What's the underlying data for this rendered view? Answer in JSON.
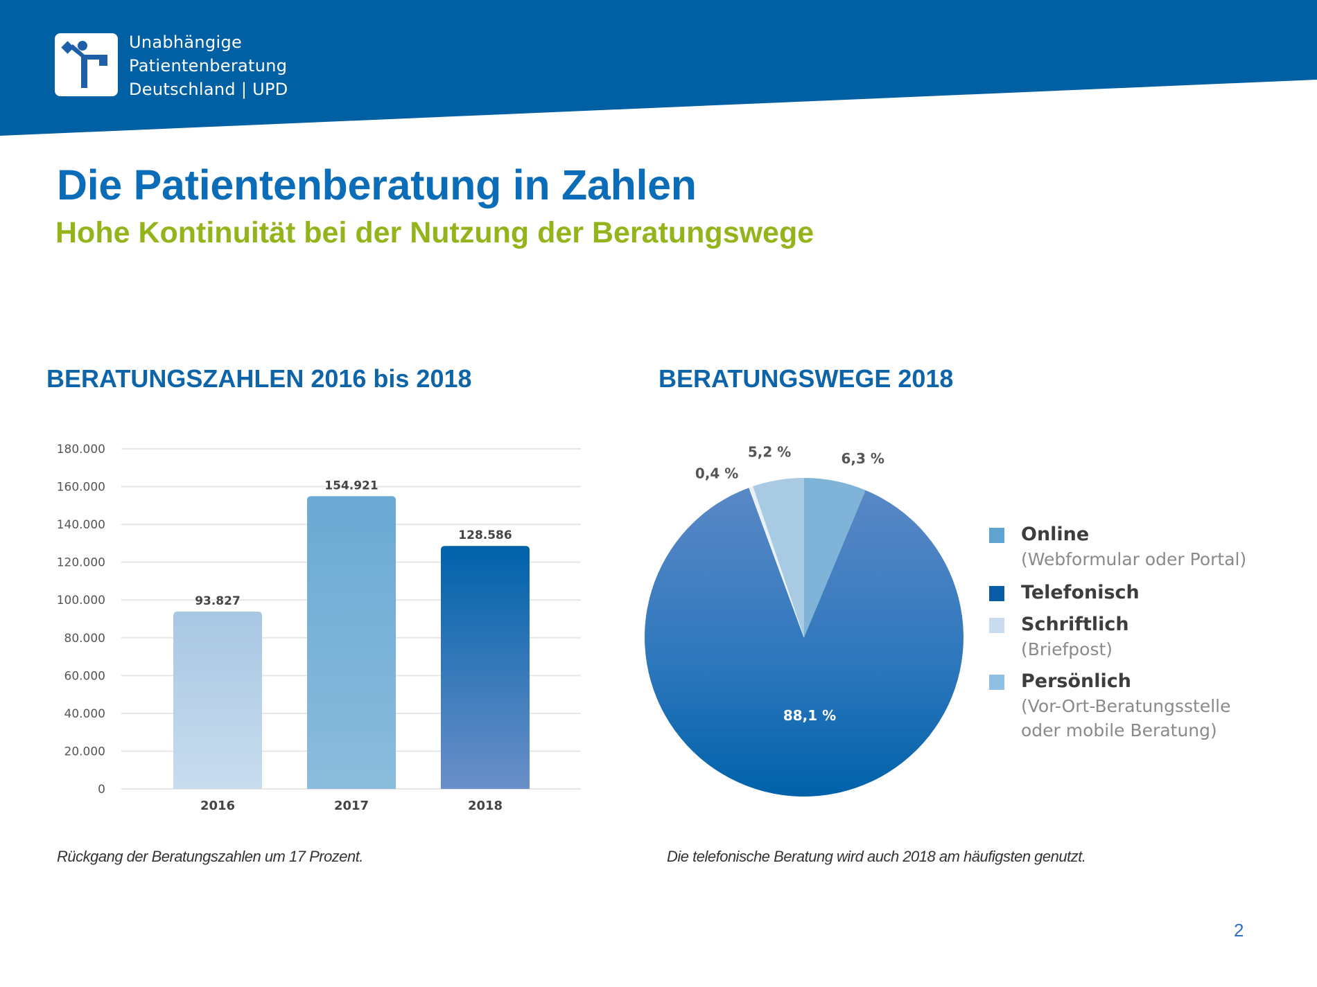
{
  "header": {
    "logo_icon": "person-signpost-icon",
    "logo_lines": [
      "Unabhängige",
      "Patientenberatung",
      "Deutschland | UPD"
    ],
    "brand_color": "#0060a3"
  },
  "page": {
    "title": "Die Patientenberatung in Zahlen",
    "subtitle": "Hohe Kontinuität bei der Nutzung der Beratungswege",
    "title_color": "#0b6cb8",
    "subtitle_color": "#95b31a",
    "page_number": "2"
  },
  "captions": {
    "bar": "Rückgang der Beratungszahlen um 17 Prozent.",
    "pie": "Die telefonische Beratung wird auch 2018 am häufigsten genutzt."
  },
  "chart_data": [
    {
      "type": "bar",
      "title": "BERATUNGSZAHLEN 2016 bis 2018",
      "categories": [
        "2016",
        "2017",
        "2018"
      ],
      "values": [
        93827,
        154921,
        128586
      ],
      "value_labels": [
        "93.827",
        "154.921",
        "128.586"
      ],
      "xlabel": "",
      "ylabel": "",
      "ylim": [
        0,
        180000
      ],
      "yticks": [
        0,
        20000,
        40000,
        60000,
        80000,
        100000,
        120000,
        140000,
        160000,
        180000
      ],
      "ytick_labels": [
        "0",
        "20.000",
        "40.000",
        "60.000",
        "80.000",
        "100.000",
        "120.000",
        "140.000",
        "160.000",
        "180.000"
      ],
      "grid": true,
      "bar_colors": [
        {
          "top": "#a8c7e3",
          "bottom": "#c8dcee"
        },
        {
          "top": "#6aa9d3",
          "bottom": "#8bbcdc"
        },
        {
          "top": "#0062aa",
          "bottom": "#6a8fc8"
        }
      ]
    },
    {
      "type": "pie",
      "title": "BERATUNGSWEGE 2018",
      "slices": [
        {
          "name": "Online",
          "sublabel": "(Webformular oder Portal)",
          "value": 6.3,
          "label": "6,3 %",
          "color": "#7fb4d8"
        },
        {
          "name": "Telefonisch",
          "sublabel": "",
          "value": 88.1,
          "label": "88,1 %",
          "color": "#0062aa"
        },
        {
          "name": "Schriftlich",
          "sublabel": "(Briefpost)",
          "value": 0.4,
          "label": "0,4 %",
          "color": "#e8f0f8"
        },
        {
          "name": "Persönlich",
          "sublabel": "(Vor-Ort-Beratungsstelle oder mobile Beratung)",
          "value": 5.2,
          "label": "5,2 %",
          "color": "#a9cae3"
        }
      ],
      "legend": {
        "placement": "right",
        "items": [
          {
            "label": "Online",
            "sub": [
              "(Webformular oder Portal)"
            ],
            "color": "#5fa3d0"
          },
          {
            "label": "Telefonisch",
            "sub": [],
            "color": "#0a5ca6"
          },
          {
            "label": "Schriftlich",
            "sub": [
              "(Briefpost)"
            ],
            "color": "#c7dcee"
          },
          {
            "label": "Persönlich",
            "sub": [
              "(Vor-Ort-Beratungsstelle",
              "oder mobile Beratung)"
            ],
            "color": "#8fc0e3"
          }
        ]
      }
    }
  ]
}
